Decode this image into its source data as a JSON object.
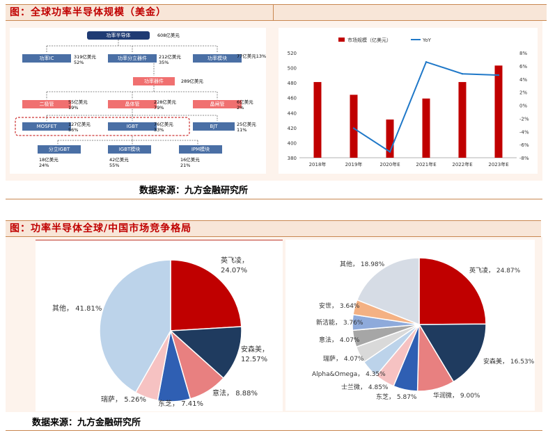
{
  "section1": {
    "title": "图：全球功率半导体规模（美金）",
    "source": "数据来源：九方金融研究所",
    "tree": {
      "root": {
        "label": "功率半导体",
        "value": "608亿美元"
      },
      "l1": [
        {
          "label": "功率IC",
          "value": "319亿美元",
          "pct": "52%"
        },
        {
          "label": "功率分立器件",
          "value": "212亿美元",
          "pct": "35%"
        },
        {
          "label": "功率模块",
          "value": "77亿美元13%",
          "pct": ""
        }
      ],
      "l2": {
        "label": "功率器件",
        "value": "289亿美元"
      },
      "l3": [
        {
          "label": "二极管",
          "value": "55亿美元",
          "pct": "19%"
        },
        {
          "label": "晶体管",
          "value": "228亿美元",
          "pct": "79%"
        },
        {
          "label": "晶闸管",
          "value": "6亿美元",
          "pct": "2%"
        }
      ],
      "l4": [
        {
          "label": "MOSFET",
          "value": "127亿美元",
          "pct": "56%"
        },
        {
          "label": "IGBT",
          "value": "76亿美元",
          "pct": "33%"
        },
        {
          "label": "BJT",
          "value": "25亿美元",
          "pct": "11%"
        }
      ],
      "l5": [
        {
          "label": "分立IGBT",
          "value": "18亿美元",
          "pct": "24%"
        },
        {
          "label": "IGBT模块",
          "value": "42亿美元",
          "pct": "55%"
        },
        {
          "label": "IPM模块",
          "value": "16亿美元",
          "pct": "21%"
        }
      ]
    }
  },
  "section2": {
    "title": "图：功率半导体全球/中国市场竞争格局",
    "source": "数据来源：九方金融研究所"
  },
  "chart_data": [
    {
      "type": "bar",
      "categories": [
        "2018年",
        "2019年",
        "2020年E",
        "2021年E",
        "2022年E",
        "2023年E"
      ],
      "series": [
        {
          "name": "市场规模（亿美元）",
          "kind": "bar",
          "axis": "left",
          "color": "#c00000",
          "values": [
            481,
            464,
            431,
            459,
            481,
            503
          ]
        },
        {
          "name": "YoY",
          "kind": "line",
          "axis": "right",
          "color": "#1f78c8",
          "values": [
            null,
            -3.5,
            -7.1,
            6.6,
            4.8,
            4.6
          ]
        }
      ],
      "ylim": [
        380,
        520
      ],
      "yticks": [
        "380",
        "400",
        "420",
        "440",
        "460",
        "480",
        "500",
        "520"
      ],
      "y2lim": [
        -8,
        8
      ],
      "y2ticks": [
        "-8%",
        "-6%",
        "-4%",
        "-2%",
        "0%",
        "2%",
        "4%",
        "6%",
        "8%"
      ],
      "legend": "top"
    },
    {
      "type": "pie",
      "labels": [
        "英飞凌，",
        "安森美，",
        "意法，",
        "东芝，",
        "瑞萨，",
        "其他，"
      ],
      "values": [
        24.07,
        12.57,
        8.88,
        7.41,
        5.26,
        41.81
      ],
      "value_labels": [
        "24.07%",
        "12.57%",
        "8.88%",
        "7.41%",
        "5.26%",
        "41.81%"
      ],
      "colors": [
        "#c00000",
        "#1f3b5f",
        "#e88080",
        "#2f5fb3",
        "#f6c2c2",
        "#bcd3ea"
      ]
    },
    {
      "type": "pie",
      "labels": [
        "英飞凌，",
        "安森美，",
        "华润微，",
        "东芝，",
        "士兰微，",
        "Alpha&Omega，",
        "瑞萨，",
        "意法，",
        "新洁能，",
        "安世，",
        "其他，"
      ],
      "values": [
        24.87,
        16.53,
        9.0,
        5.87,
        4.85,
        4.35,
        4.07,
        4.07,
        3.76,
        3.64,
        18.98
      ],
      "value_labels": [
        "24.87%",
        "16.53%",
        "9.00%",
        "5.87%",
        "4.85%",
        "4.35%",
        "4.07%",
        "4.07%",
        "3.76%",
        "3.64%",
        "18.98%"
      ],
      "colors": [
        "#c00000",
        "#1f3b5f",
        "#e88080",
        "#2f5fb3",
        "#f6c2c2",
        "#bcd3ea",
        "#d9d9d9",
        "#a6a6a6",
        "#8eaadb",
        "#f4b183",
        "#d6dce5"
      ]
    }
  ]
}
